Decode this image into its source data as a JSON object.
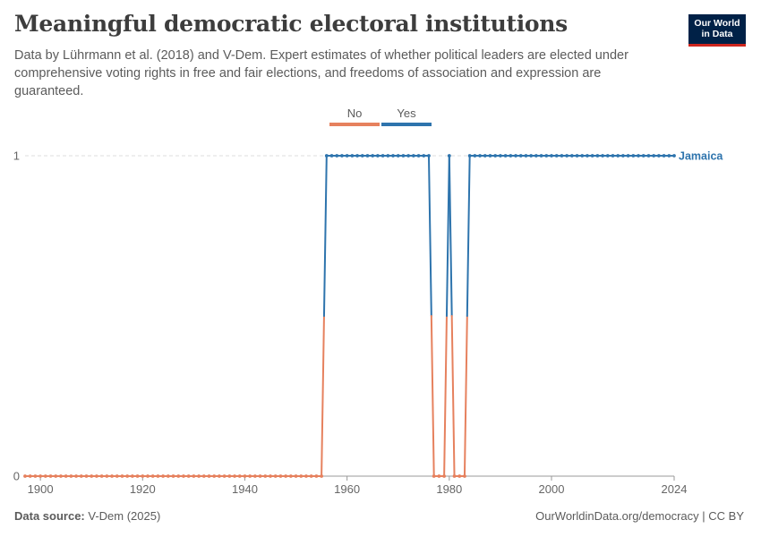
{
  "header": {
    "title": "Meaningful democratic electoral institutions",
    "subtitle": "Data by Lührmann et al. (2018) and V-Dem. Expert estimates of whether political leaders are elected under comprehensive voting rights in free and fair elections, and freedoms of association and expression are guaranteed.",
    "logo_line1": "Our World",
    "logo_line2": "in Data"
  },
  "legend": {
    "no_label": "No",
    "yes_label": "Yes",
    "no_color": "#e6815e",
    "yes_color": "#2e74ad"
  },
  "footer": {
    "source_label": "Data source:",
    "source_value": "V-Dem (2025)",
    "url": "OurWorldinData.org/democracy | CC BY"
  },
  "chart_data": {
    "type": "line",
    "title": "Meaningful democratic electoral institutions",
    "xlabel": "",
    "ylabel": "",
    "xlim": [
      1897,
      2024
    ],
    "ylim": [
      0,
      1
    ],
    "x_ticks": [
      1900,
      1920,
      1940,
      1960,
      1980,
      2000,
      2024
    ],
    "y_ticks": [
      0,
      1
    ],
    "grid": "horizontal-dashed",
    "legend_position": "top-center",
    "series": [
      {
        "name": "Jamaica",
        "color_no": "#e6815e",
        "color_yes": "#2e74ad",
        "segments": [
          {
            "from": 1897,
            "to": 1955,
            "value": 0
          },
          {
            "from": 1956,
            "to": 1976,
            "value": 1
          },
          {
            "from": 1977,
            "to": 1979,
            "value": 0
          },
          {
            "from": 1980,
            "to": 1980,
            "value": 1
          },
          {
            "from": 1981,
            "to": 1983,
            "value": 0
          },
          {
            "from": 1984,
            "to": 2024,
            "value": 1
          }
        ]
      }
    ]
  }
}
